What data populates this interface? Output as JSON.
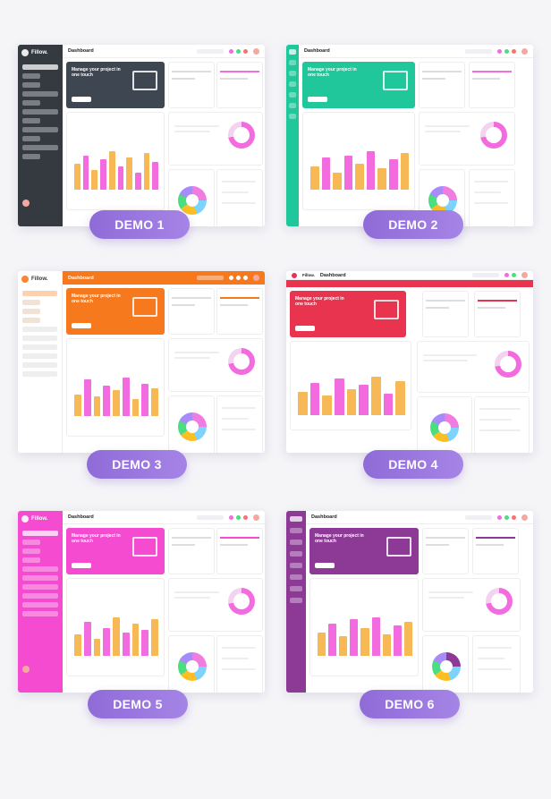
{
  "demos": [
    {
      "label": "DEMO 1",
      "logo": "Fillow.",
      "page_title": "Dashboard",
      "banner_text": "Manage your project in one touch",
      "accent": "#f26ce0",
      "sidebar": "#343a40",
      "banner": "#3e4652",
      "bars_a": "#f7b955",
      "bars_b": "#f26ce0"
    },
    {
      "label": "DEMO 2",
      "logo": "",
      "page_title": "Dashboard",
      "banner_text": "Manage your project in one touch",
      "accent": "#1fc79a",
      "sidebar": "#1fc79a",
      "banner": "#1fc79a",
      "bars_a": "#f7b955",
      "bars_b": "#f26ce0"
    },
    {
      "label": "DEMO 3",
      "logo": "Fillow.",
      "page_title": "Dashboard",
      "banner_text": "Manage your project in one touch",
      "accent": "#f7791d",
      "sidebar": "#ffffff",
      "banner": "#f7791d",
      "bars_a": "#f7b955",
      "bars_b": "#f26ce0"
    },
    {
      "label": "DEMO 4",
      "logo": "Fillow.",
      "page_title": "Dashboard",
      "banner_text": "Manage your project in one touch",
      "accent": "#e8344e",
      "sidebar": "#e8344e",
      "banner": "#e8344e",
      "bars_a": "#f7b955",
      "bars_b": "#f26ce0"
    },
    {
      "label": "DEMO 5",
      "logo": "Fillow.",
      "page_title": "Dashboard",
      "banner_text": "Manage your project in one touch",
      "accent": "#f44bd1",
      "sidebar": "#f44bd1",
      "banner": "#f44bd1",
      "bars_a": "#f7b955",
      "bars_b": "#f26ce0"
    },
    {
      "label": "DEMO 6",
      "logo": "",
      "page_title": "Dashboard",
      "banner_text": "Manage your project in one touch",
      "accent": "#8c3a95",
      "sidebar": "#8c3a95",
      "banner": "#8c3a95",
      "bars_a": "#f7b955",
      "bars_b": "#f26ce0"
    }
  ]
}
